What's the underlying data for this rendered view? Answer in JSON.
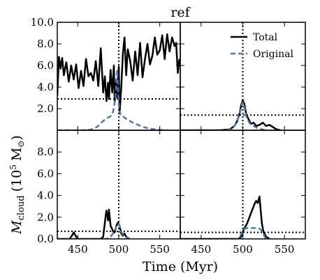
{
  "chart_data": {
    "type": "line",
    "title": "ref",
    "xlabel": "Time (Myr)",
    "ylabel_main": "M",
    "ylabel_sub": "cloud",
    "ylabel_units": "(10",
    "ylabel_exp": "5",
    "ylabel_unit_tail": "M",
    "ylabel_sun": "⊙",
    "ylabel_close": ")",
    "xlim": [
      425,
      575
    ],
    "ylim": [
      0,
      10
    ],
    "xticks": [
      450,
      500,
      550
    ],
    "xtick_labels": [
      "450",
      "500",
      "550"
    ],
    "legend": {
      "placement": "top-right of upper-right panel",
      "entries": [
        {
          "name": "Total",
          "color": "#000000",
          "style": "solid"
        },
        {
          "name": "Original",
          "color": "#4a7ab0",
          "style": "dashed"
        }
      ]
    },
    "vline_x": 500,
    "panels": [
      {
        "position": "top-left",
        "yticks": [
          2,
          4,
          6,
          8,
          10
        ],
        "ytick_labels": [
          "2.0",
          "4.0",
          "6.0",
          "8.0",
          "10.0"
        ],
        "hline_y": 2.9,
        "series": [
          {
            "name": "Total",
            "x": [
              425,
              427,
              429,
              431,
              433,
              436,
              439,
              442,
              445,
              448,
              451,
              454,
              457,
              460,
              463,
              466,
              469,
              472,
              475,
              478,
              481,
              483,
              485,
              487,
              488,
              490,
              492,
              494,
              495,
              497,
              498,
              500,
              501,
              503,
              505,
              507,
              509,
              511,
              514,
              517,
              520,
              523,
              526,
              529,
              532,
              535,
              538,
              541,
              544,
              547,
              550,
              553,
              556,
              559,
              562,
              565,
              568,
              570,
              572,
              574
            ],
            "y": [
              3.2,
              6.8,
              5.7,
              6.7,
              5.1,
              6.3,
              4.5,
              6.0,
              4.7,
              6.1,
              3.9,
              5.5,
              4.1,
              6.6,
              5.0,
              5.3,
              4.6,
              6.4,
              4.1,
              7.6,
              3.5,
              5.0,
              2.7,
              4.4,
              2.9,
              5.6,
              3.5,
              6.0,
              2.6,
              4.7,
              3.0,
              5.9,
              1.6,
              3.9,
              7.1,
              8.6,
              5.1,
              7.5,
              6.4,
              4.6,
              7.3,
              5.1,
              8.1,
              4.9,
              6.6,
              8.0,
              6.1,
              6.9,
              8.6,
              7.0,
              7.4,
              8.8,
              6.6,
              8.9,
              7.3,
              8.6,
              7.8,
              8.1,
              5.3,
              6.6
            ]
          },
          {
            "name": "Original",
            "x": [
              425,
              440,
              455,
              465,
              470,
              475,
              480,
              485,
              490,
              493,
              496,
              498,
              500,
              502,
              505,
              510,
              515,
              520,
              525,
              530,
              535,
              540,
              545,
              550,
              555,
              560
            ],
            "y": [
              0,
              0,
              0,
              0.05,
              0.15,
              0.4,
              0.8,
              1.1,
              1.3,
              1.7,
              3.0,
              5.6,
              2.4,
              1.4,
              1.3,
              1.0,
              0.8,
              0.6,
              0.45,
              0.3,
              0.2,
              0.12,
              0.08,
              0.04,
              0.02,
              0
            ]
          }
        ]
      },
      {
        "position": "top-right",
        "yticks": [],
        "ytick_labels": [],
        "hline_y": 1.4,
        "series": [
          {
            "name": "Total",
            "x": [
              425,
              470,
              480,
              485,
              490,
              493,
              496,
              498,
              500,
              502,
              504,
              507,
              510,
              513,
              516,
              520,
              524,
              528,
              532,
              536,
              540,
              545
            ],
            "y": [
              0,
              0,
              0.05,
              0.1,
              0.4,
              0.8,
              1.5,
              2.3,
              2.8,
              2.4,
              1.5,
              1.0,
              0.6,
              0.7,
              0.4,
              0.5,
              0.7,
              0.4,
              0.5,
              0.3,
              0.1,
              0
            ]
          },
          {
            "name": "Original",
            "x": [
              425,
              470,
              480,
              485,
              490,
              493,
              496,
              498,
              500,
              502,
              504,
              507,
              510,
              513,
              516,
              520,
              525,
              530
            ],
            "y": [
              0,
              0,
              0.05,
              0.1,
              0.4,
              0.8,
              1.4,
              2.1,
              2.6,
              2.1,
              1.3,
              0.8,
              0.5,
              0.4,
              0.25,
              0.15,
              0.05,
              0
            ]
          }
        ]
      },
      {
        "position": "bottom-left",
        "yticks": [
          0,
          2,
          4,
          6,
          8
        ],
        "ytick_labels": [
          "0.0",
          "2.0",
          "4.0",
          "6.0",
          "8.0"
        ],
        "hline_y": 0.7,
        "series": [
          {
            "name": "Total",
            "x": [
              425,
              440,
              443,
              445,
              448,
              450,
              478,
              481,
              484,
              485,
              487,
              488,
              490,
              492,
              493,
              495,
              497,
              499,
              501,
              503,
              505,
              507,
              509,
              511,
              513
            ],
            "y": [
              0,
              0,
              0.3,
              0.6,
              0.2,
              0,
              0,
              0.2,
              2.1,
              2.6,
              1.7,
              2.7,
              1.2,
              0.9,
              0.7,
              0.6,
              1.2,
              1.5,
              1.2,
              0.5,
              0.3,
              0.5,
              0.2,
              0.1,
              0
            ]
          },
          {
            "name": "Original",
            "x": [
              425,
              485,
              490,
              493,
              495,
              497,
              499,
              501,
              503,
              505,
              508,
              511,
              513
            ],
            "y": [
              0,
              0,
              0.2,
              0.5,
              0.7,
              1.2,
              1.4,
              1.2,
              0.7,
              0.4,
              0.2,
              0.05,
              0
            ]
          }
        ]
      },
      {
        "position": "bottom-right",
        "yticks": [],
        "ytick_labels": [],
        "hline_y": 0.6,
        "series": [
          {
            "name": "Total",
            "x": [
              425,
              495,
              498,
              500,
              502,
              505,
              508,
              511,
              514,
              516,
              518,
              520,
              521,
              523,
              525,
              528,
              532
            ],
            "y": [
              0,
              0,
              0.2,
              0.6,
              1.0,
              1.4,
              2.0,
              2.6,
              3.2,
              3.5,
              3.3,
              3.9,
              3.0,
              1.4,
              0.6,
              0.2,
              0
            ]
          },
          {
            "name": "Original",
            "x": [
              425,
              495,
              497,
              499,
              501,
              505,
              510,
              514,
              518,
              521,
              523,
              525,
              527,
              528
            ],
            "y": [
              0,
              0,
              0.3,
              0.6,
              0.9,
              1.0,
              1.0,
              1.0,
              1.0,
              0.9,
              0.7,
              0.4,
              0.1,
              0
            ]
          }
        ]
      }
    ]
  }
}
